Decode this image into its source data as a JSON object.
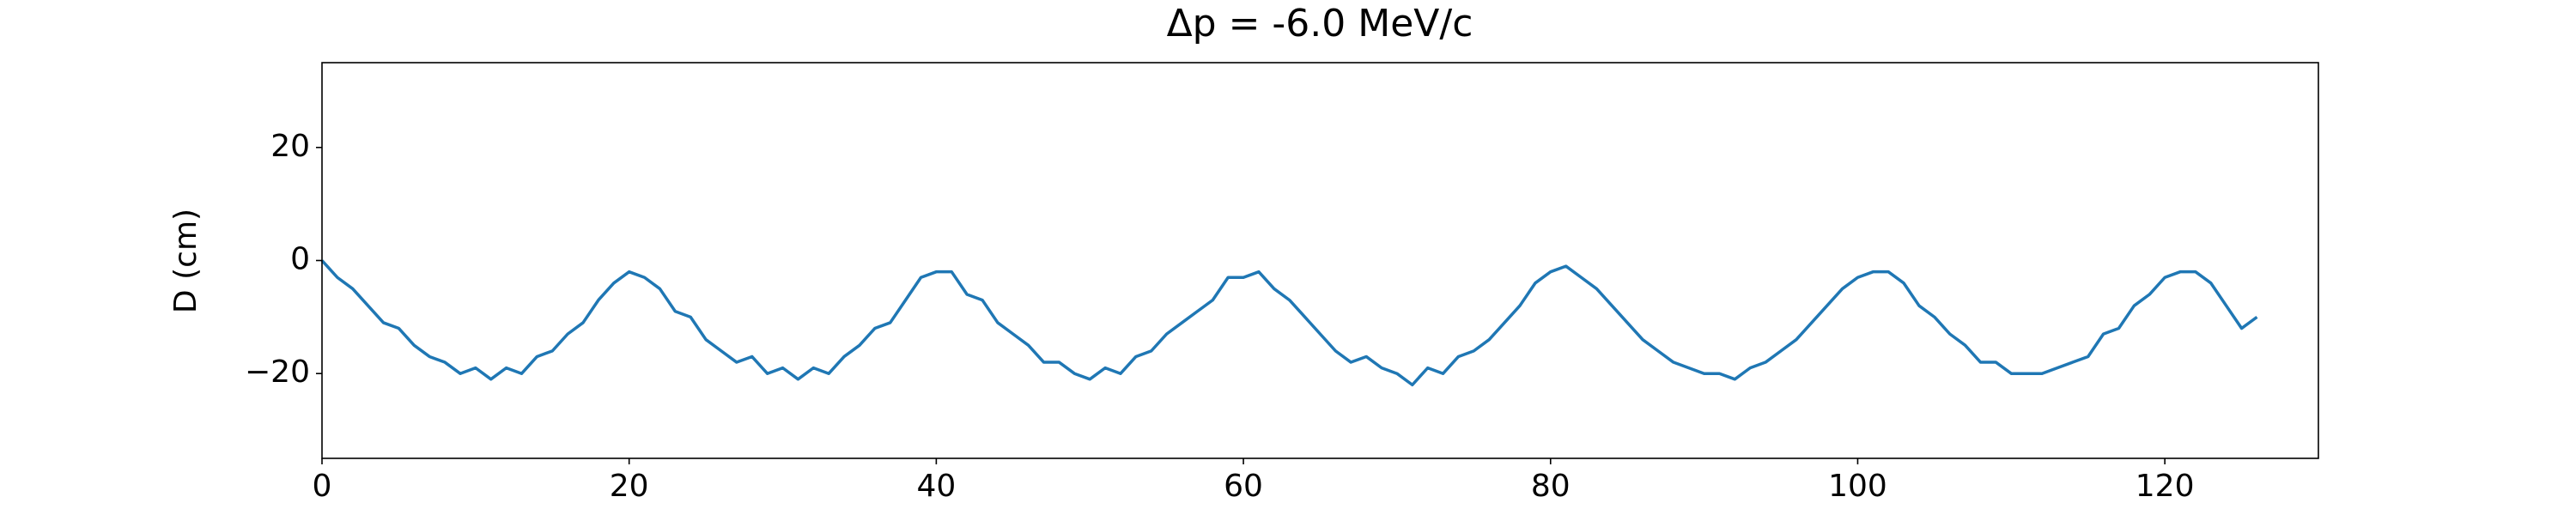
{
  "chart_data": {
    "type": "line",
    "title": "Δp = -6.0 MeV/c",
    "y_label": "D (cm)",
    "x": [
      0,
      1,
      2,
      3,
      4,
      5,
      6,
      7,
      8,
      9,
      10,
      11,
      12,
      13,
      14,
      15,
      16,
      17,
      18,
      19,
      20,
      21,
      22,
      23,
      24,
      25,
      26,
      27,
      28,
      29,
      30,
      31,
      32,
      33,
      34,
      35,
      36,
      37,
      38,
      39,
      40,
      41,
      42,
      43,
      44,
      45,
      46,
      47,
      48,
      49,
      50,
      51,
      52,
      53,
      54,
      55,
      56,
      57,
      58,
      59,
      60,
      61,
      62,
      63,
      64,
      65,
      66,
      67,
      68,
      69,
      70,
      71,
      72,
      73,
      74,
      75,
      76,
      77,
      78,
      79,
      80,
      81,
      82,
      83,
      84,
      85,
      86,
      87,
      88,
      89,
      90,
      91,
      92,
      93,
      94,
      95,
      96,
      97,
      98,
      99,
      100,
      101,
      102,
      103,
      104,
      105,
      106,
      107,
      108,
      109,
      110,
      111,
      112,
      113,
      114,
      115,
      116,
      117,
      118,
      119,
      120,
      121,
      122,
      123,
      124,
      125,
      126
    ],
    "series": [
      {
        "color": "#1f77b4",
        "values": [
          0,
          -3,
          -5,
          -8,
          -11,
          -12,
          -15,
          -17,
          -18,
          -20,
          -19,
          -21,
          -19,
          -20,
          -17,
          -16,
          -13,
          -11,
          -7,
          -4,
          -2,
          -3,
          -5,
          -9,
          -10,
          -14,
          -16,
          -18,
          -17,
          -20,
          -19,
          -21,
          -19,
          -20,
          -17,
          -15,
          -12,
          -11,
          -7,
          -3,
          -2,
          -2,
          -6,
          -7,
          -11,
          -13,
          -15,
          -18,
          -18,
          -20,
          -21,
          -19,
          -20,
          -17,
          -16,
          -13,
          -11,
          -9,
          -7,
          -3,
          -3,
          -2,
          -5,
          -7,
          -10,
          -13,
          -16,
          -18,
          -17,
          -19,
          -20,
          -22,
          -19,
          -20,
          -17,
          -16,
          -14,
          -11,
          -8,
          -4,
          -2,
          -1,
          -3,
          -5,
          -8,
          -11,
          -14,
          -16,
          -18,
          -19,
          -20,
          -20,
          -21,
          -19,
          -18,
          -16,
          -14,
          -11,
          -8,
          -5,
          -3,
          -2,
          -2,
          -4,
          -8,
          -10,
          -13,
          -15,
          -18,
          -18,
          -20,
          -20,
          -20,
          -19,
          -18,
          -17,
          -13,
          -12,
          -8,
          -6,
          -3,
          -2,
          -2,
          -4,
          -8,
          -12,
          -10
        ]
      }
    ],
    "xlim": [
      0,
      130
    ],
    "xticks": [
      0,
      20,
      40,
      60,
      80,
      100,
      120
    ],
    "ylim": [
      -35,
      35
    ],
    "yticks": [
      {
        "value": -20,
        "label": "−20"
      },
      0,
      20
    ]
  }
}
